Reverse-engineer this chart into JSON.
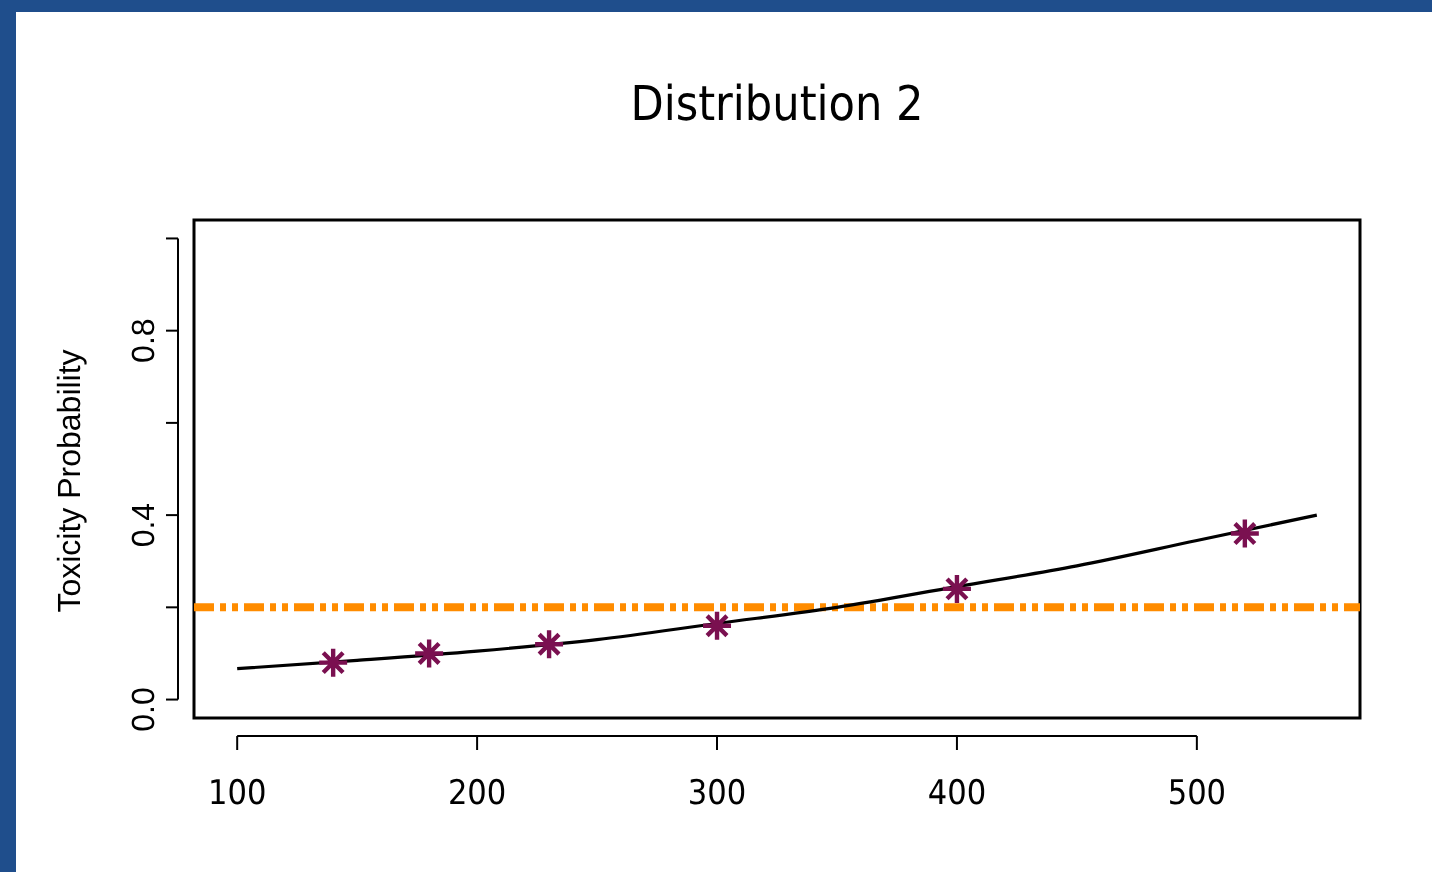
{
  "chart_data": {
    "type": "line",
    "title": "Distribution 2",
    "ylabel": "Toxicity Probability",
    "xlim": [
      82,
      568
    ],
    "xticks": [
      100,
      200,
      300,
      400,
      500
    ],
    "ylim": [
      -0.04,
      1.04
    ],
    "yticks": [
      {
        "value": 0,
        "label": "0.0"
      },
      {
        "value": 0.2,
        "label": null
      },
      0.4,
      {
        "value": 0.6,
        "label": null
      },
      0.8,
      {
        "value": 1.0,
        "label": null
      }
    ],
    "series": [
      {
        "color": "#000000",
        "x": [
          100,
          150,
          200,
          250,
          300,
          350,
          400,
          450,
          500,
          550
        ],
        "values": [
          0.067,
          0.085,
          0.105,
          0.13,
          0.165,
          0.2,
          0.245,
          0.29,
          0.345,
          0.4
        ]
      },
      {
        "type": "scatter",
        "color": "#7a1050",
        "marker": "cross",
        "x": [
          140,
          180,
          230,
          300,
          400,
          520
        ],
        "values": [
          0.08,
          0.1,
          0.12,
          0.16,
          0.24,
          0.36
        ]
      }
    ],
    "ref_lines": [
      {
        "axis": "y",
        "value": 0.2,
        "color": "#ff8c00",
        "line_style": "dashed"
      }
    ],
    "grid": false
  }
}
